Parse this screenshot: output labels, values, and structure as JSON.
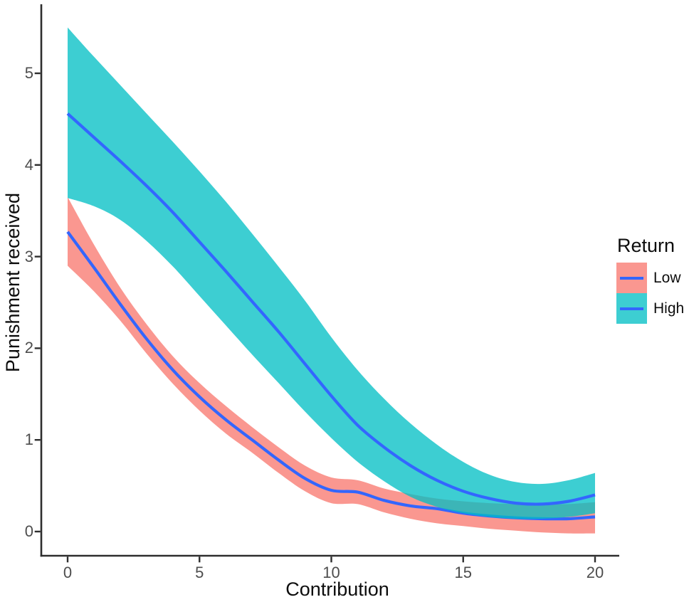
{
  "chart_data": {
    "type": "line",
    "title": "",
    "xlabel": "Contribution",
    "ylabel": "Punishment received",
    "xlim": [
      0,
      20
    ],
    "ylim": [
      -0.26,
      5.6
    ],
    "x_ticks": [
      0,
      5,
      10,
      15,
      20
    ],
    "y_ticks": [
      0,
      1,
      2,
      3,
      4,
      5
    ],
    "grid": false,
    "legend": {
      "title": "Return",
      "position": "right"
    },
    "x": [
      0,
      1,
      2,
      3,
      4,
      5,
      6,
      7,
      8,
      9,
      10,
      11,
      12,
      13,
      14,
      15,
      16,
      17,
      18,
      19,
      20
    ],
    "series": [
      {
        "name": "Low",
        "fill": "#F8766D",
        "line_color": "#3366FF",
        "values": [
          3.27,
          2.88,
          2.48,
          2.1,
          1.76,
          1.47,
          1.22,
          1.0,
          0.78,
          0.58,
          0.45,
          0.43,
          0.34,
          0.28,
          0.25,
          0.2,
          0.17,
          0.15,
          0.14,
          0.14,
          0.16
        ],
        "ci_upper": [
          3.65,
          3.13,
          2.66,
          2.26,
          1.91,
          1.62,
          1.37,
          1.14,
          0.92,
          0.72,
          0.59,
          0.56,
          0.47,
          0.41,
          0.36,
          0.33,
          0.31,
          0.3,
          0.3,
          0.3,
          0.32
        ],
        "ci_lower": [
          2.9,
          2.62,
          2.3,
          1.94,
          1.61,
          1.32,
          1.07,
          0.86,
          0.64,
          0.44,
          0.31,
          0.3,
          0.21,
          0.14,
          0.09,
          0.06,
          0.03,
          0.01,
          -0.01,
          -0.02,
          -0.02
        ]
      },
      {
        "name": "High",
        "fill": "#00BFC4",
        "line_color": "#3366FF",
        "values": [
          4.56,
          4.3,
          4.04,
          3.77,
          3.48,
          3.16,
          2.84,
          2.51,
          2.18,
          1.83,
          1.48,
          1.16,
          0.92,
          0.72,
          0.56,
          0.44,
          0.36,
          0.31,
          0.3,
          0.33,
          0.4
        ],
        "ci_upper": [
          5.5,
          5.18,
          4.87,
          4.56,
          4.25,
          3.93,
          3.6,
          3.25,
          2.89,
          2.52,
          2.12,
          1.76,
          1.45,
          1.18,
          0.95,
          0.76,
          0.62,
          0.54,
          0.52,
          0.56,
          0.64
        ],
        "ci_lower": [
          3.64,
          3.55,
          3.4,
          3.17,
          2.89,
          2.57,
          2.25,
          1.93,
          1.62,
          1.31,
          1.02,
          0.76,
          0.55,
          0.38,
          0.27,
          0.2,
          0.16,
          0.14,
          0.14,
          0.16,
          0.2
        ]
      }
    ],
    "colors": {
      "band_fill_opacity": 0.76,
      "trend_line": "#3366FF",
      "axis_line": "#2e2e2e",
      "tick_mark": "#2e2e2e",
      "tick_label": "#4d4d4d",
      "title_text": "#0d0d0d"
    }
  }
}
